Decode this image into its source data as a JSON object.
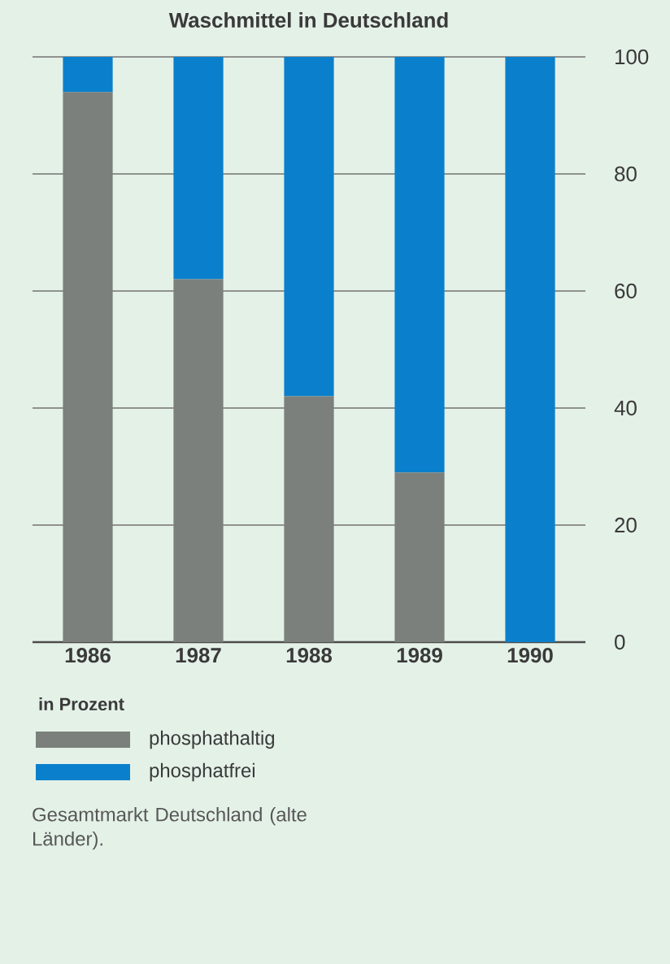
{
  "chart_data": {
    "type": "bar",
    "title": "Waschmittel in Deutschland",
    "categories": [
      "1986",
      "1987",
      "1988",
      "1989",
      "1990"
    ],
    "stacked": true,
    "series": [
      {
        "name": "phosphathaltig",
        "color": "#7b807c",
        "values": [
          94,
          62,
          42,
          29,
          0
        ]
      },
      {
        "name": "phosphatfrei",
        "color": "#0a80cc",
        "values": [
          6,
          38,
          58,
          71,
          100
        ]
      }
    ],
    "ylim": [
      0,
      100
    ],
    "yticks": [
      0,
      20,
      40,
      60,
      80,
      100
    ],
    "grid": "y",
    "legend": "bottom",
    "legend_title": "in Prozent",
    "annotations": [
      "Gesamtmarkt Deutschland (alte Länder)."
    ]
  }
}
